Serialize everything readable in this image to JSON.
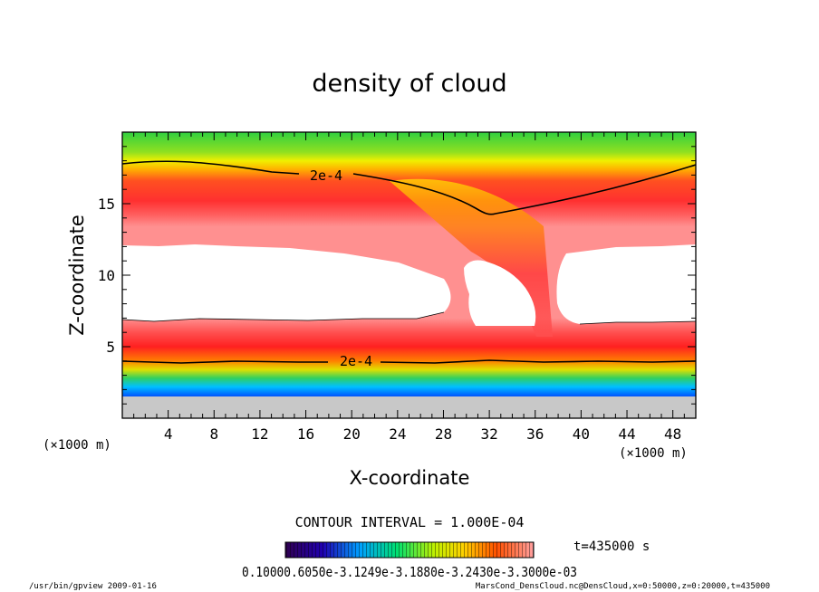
{
  "chart_data": {
    "type": "heatmap",
    "title": "density of cloud",
    "xlabel": "X-coordinate",
    "ylabel": "Z-coordinate",
    "x_units_left": "(×1000 m)",
    "x_units_right": "(×1000 m)",
    "xlim": [
      0,
      50
    ],
    "ylim": [
      0,
      20
    ],
    "xticks": [
      "4",
      "8",
      "12",
      "16",
      "20",
      "24",
      "28",
      "32",
      "36",
      "40",
      "44",
      "48"
    ],
    "yticks": [
      "5",
      "10",
      "15"
    ],
    "contour_label": "2e-4",
    "contour_interval_text": "CONTOUR INTERVAL = 1.000E-04",
    "time_text": "t=435000 s",
    "colorbar_labels_text": "0.10000.6050e-3.1249e-3.1880e-3.2430e-3.3000e-03",
    "footer_left": "/usr/bin/gpview   2009-01-16",
    "footer_right": "MarsCond_DensCloud.nc@DensCloud,x=0:50000,z=0:20000,t=435000",
    "palette": [
      "#3a0060",
      "#1a00a0",
      "#0040ff",
      "#00c0ff",
      "#00e080",
      "#40e000",
      "#c0f000",
      "#ffff00",
      "#ffc000",
      "#ff7000",
      "#ff3030",
      "#ffa0a0"
    ]
  }
}
